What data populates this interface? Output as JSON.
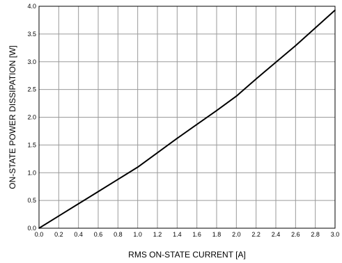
{
  "chart_data": {
    "type": "line",
    "xlabel": "RMS ON-STATE CURRENT [A]",
    "ylabel": "ON-STATE POWER DISSIPATION [W]",
    "xlim": [
      0.0,
      3.0
    ],
    "ylim": [
      0.0,
      4.0
    ],
    "grid": true,
    "x_ticks": [
      "0.0",
      "0.2",
      "0.4",
      "0.6",
      "0.8",
      "1.0",
      "1.2",
      "1.4",
      "1.6",
      "1.8",
      "2.0",
      "2.2",
      "2.4",
      "2.6",
      "2.8",
      "3.0"
    ],
    "y_ticks": [
      "0.0",
      "0.5",
      "1.0",
      "1.5",
      "2.0",
      "2.5",
      "3.0",
      "3.5",
      "4.0"
    ],
    "series": [
      {
        "x": [
          0.0,
          0.2,
          0.4,
          0.6,
          0.8,
          1.0,
          1.2,
          1.4,
          1.6,
          1.8,
          2.0,
          2.2,
          2.4,
          2.6,
          2.8,
          3.0
        ],
        "y": [
          0.0,
          0.22,
          0.44,
          0.66,
          0.88,
          1.1,
          1.36,
          1.62,
          1.87,
          2.12,
          2.38,
          2.69,
          2.99,
          3.29,
          3.61,
          3.93
        ]
      }
    ],
    "colors": {
      "line": "#000000",
      "grid": "#9a9a9a",
      "frame": "#000000"
    }
  }
}
